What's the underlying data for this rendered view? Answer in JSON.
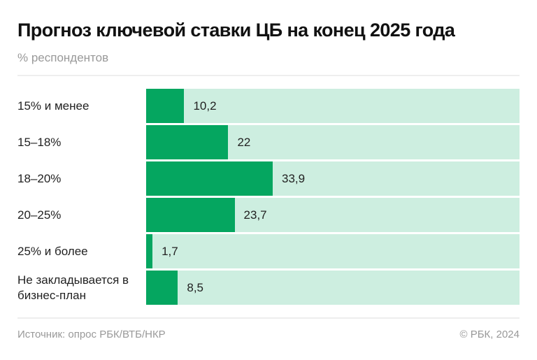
{
  "chart_data": {
    "type": "bar",
    "orientation": "horizontal",
    "title": "Прогноз ключевой ставки ЦБ на конец 2025 года",
    "subtitle": "% респондентов",
    "categories": [
      "15% и менее",
      "15–18%",
      "18–20%",
      "20–25%",
      "25% и более",
      "Не закладывается в бизнес-план"
    ],
    "values": [
      10.2,
      22,
      33.9,
      23.7,
      1.7,
      8.5
    ],
    "value_labels": [
      "10,2",
      "22",
      "33,9",
      "23,7",
      "1,7",
      "8,5"
    ],
    "xlim": [
      0,
      100
    ],
    "grid": false,
    "colors": {
      "bar": "#05a660",
      "track": "#cdeee0"
    }
  },
  "footer": {
    "source": "Источник: опрос РБК/ВТБ/НКР",
    "copyright": "© РБК, 2024"
  }
}
